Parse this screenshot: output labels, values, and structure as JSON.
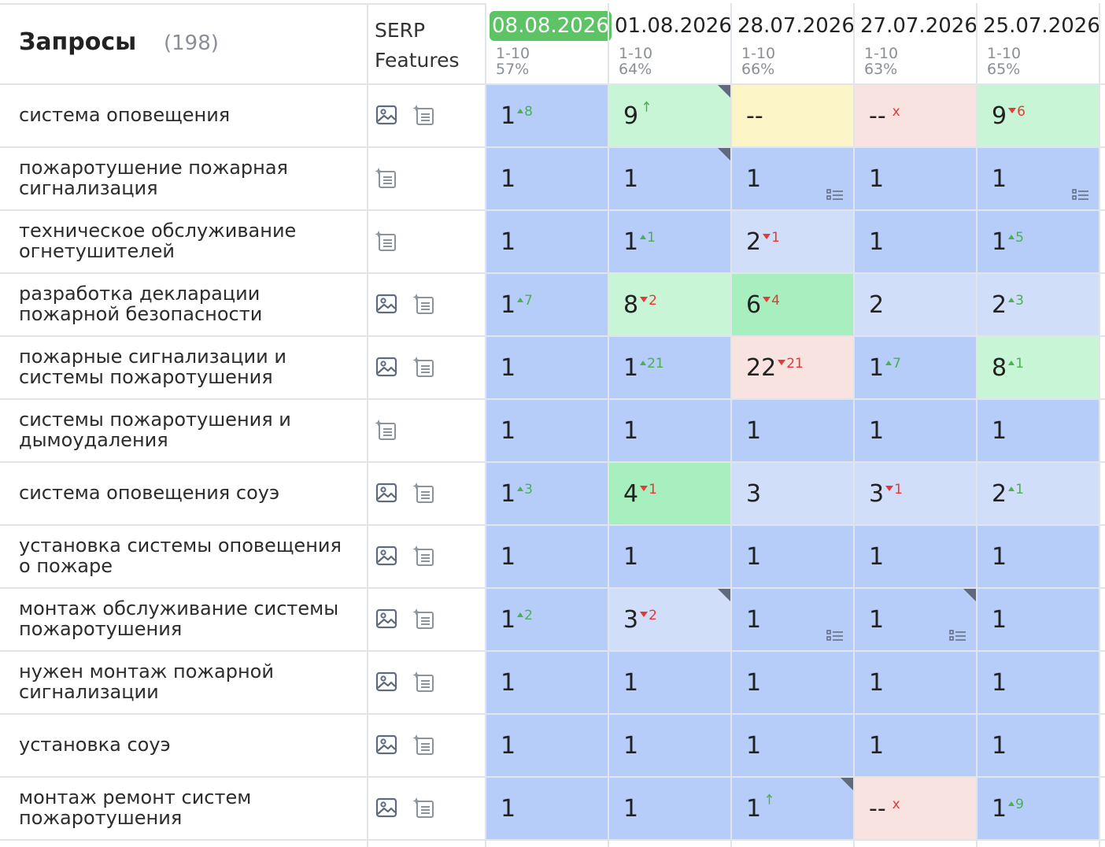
{
  "header": {
    "queries_label": "Запросы",
    "queries_count": "(198)",
    "serp_label_line1": "SERP",
    "serp_label_line2": "Features"
  },
  "dates": [
    {
      "date": "08.08.2026",
      "range": "1-10",
      "percent": "57%",
      "active": true
    },
    {
      "date": "01.08.2026",
      "range": "1-10",
      "percent": "64%",
      "active": false
    },
    {
      "date": "28.07.2026",
      "range": "1-10",
      "percent": "66%",
      "active": false
    },
    {
      "date": "27.07.2026",
      "range": "1-10",
      "percent": "63%",
      "active": false
    },
    {
      "date": "25.07.2026",
      "range": "1-10",
      "percent": "65%",
      "active": false
    }
  ],
  "colors": {
    "top1": "#b6cdf9",
    "top2_3": "#d1def9",
    "top4_7": "#a8efc0",
    "top8_10": "#c8f5d6",
    "absent": "#f9e3e1",
    "dashes": "#fbf5c8"
  },
  "icons": {
    "image": "image-icon",
    "snippet": "sparkle-doc-icon",
    "list": "list-icon"
  },
  "rows": [
    {
      "query": "система оповещения",
      "features": [
        "image",
        "snippet"
      ],
      "cells": [
        {
          "value": "1",
          "change": "8",
          "dir": "up",
          "color": "#b6cdf9"
        },
        {
          "value": "9",
          "change": "",
          "dir": "arrow",
          "color": "#c8f5d6",
          "corner": true
        },
        {
          "value": "--",
          "change": "",
          "dir": "",
          "color": "#fbf5c8"
        },
        {
          "value": "--",
          "change": "x",
          "dir": "x",
          "color": "#f9e3e1"
        },
        {
          "value": "9",
          "change": "6",
          "dir": "down",
          "color": "#c8f5d6"
        }
      ]
    },
    {
      "query": "пожаротушение пожарная сигнализация",
      "features": [
        "snippet"
      ],
      "cells": [
        {
          "value": "1",
          "change": "",
          "dir": "",
          "color": "#b6cdf9"
        },
        {
          "value": "1",
          "change": "",
          "dir": "",
          "color": "#b6cdf9",
          "corner": true
        },
        {
          "value": "1",
          "change": "",
          "dir": "",
          "color": "#b6cdf9",
          "list": true
        },
        {
          "value": "1",
          "change": "",
          "dir": "",
          "color": "#b6cdf9"
        },
        {
          "value": "1",
          "change": "",
          "dir": "",
          "color": "#b6cdf9",
          "list": true
        }
      ]
    },
    {
      "query": "техническое обслуживание огнетушителей",
      "features": [
        "snippet"
      ],
      "cells": [
        {
          "value": "1",
          "change": "",
          "dir": "",
          "color": "#b6cdf9"
        },
        {
          "value": "1",
          "change": "1",
          "dir": "up",
          "color": "#b6cdf9"
        },
        {
          "value": "2",
          "change": "1",
          "dir": "down",
          "color": "#d1def9"
        },
        {
          "value": "1",
          "change": "",
          "dir": "",
          "color": "#b6cdf9"
        },
        {
          "value": "1",
          "change": "5",
          "dir": "up",
          "color": "#b6cdf9"
        }
      ]
    },
    {
      "query": "разработка декларации пожарной безопасности",
      "features": [
        "image",
        "snippet"
      ],
      "cells": [
        {
          "value": "1",
          "change": "7",
          "dir": "up",
          "color": "#b6cdf9"
        },
        {
          "value": "8",
          "change": "2",
          "dir": "down",
          "color": "#c8f5d6"
        },
        {
          "value": "6",
          "change": "4",
          "dir": "down",
          "color": "#a8efc0"
        },
        {
          "value": "2",
          "change": "",
          "dir": "",
          "color": "#d1def9"
        },
        {
          "value": "2",
          "change": "3",
          "dir": "up",
          "color": "#d1def9"
        }
      ]
    },
    {
      "query": "пожарные сигнализации и системы пожаротушения",
      "features": [
        "image",
        "snippet"
      ],
      "cells": [
        {
          "value": "1",
          "change": "",
          "dir": "",
          "color": "#b6cdf9"
        },
        {
          "value": "1",
          "change": "21",
          "dir": "up",
          "color": "#b6cdf9"
        },
        {
          "value": "22",
          "change": "21",
          "dir": "down",
          "color": "#f9e3e1"
        },
        {
          "value": "1",
          "change": "7",
          "dir": "up",
          "color": "#b6cdf9"
        },
        {
          "value": "8",
          "change": "1",
          "dir": "up",
          "color": "#c8f5d6"
        }
      ]
    },
    {
      "query": "системы пожаротушения и дымоудаления",
      "features": [
        "snippet"
      ],
      "cells": [
        {
          "value": "1",
          "change": "",
          "dir": "",
          "color": "#b6cdf9"
        },
        {
          "value": "1",
          "change": "",
          "dir": "",
          "color": "#b6cdf9"
        },
        {
          "value": "1",
          "change": "",
          "dir": "",
          "color": "#b6cdf9"
        },
        {
          "value": "1",
          "change": "",
          "dir": "",
          "color": "#b6cdf9"
        },
        {
          "value": "1",
          "change": "",
          "dir": "",
          "color": "#b6cdf9"
        }
      ]
    },
    {
      "query": "система оповещения соуэ",
      "features": [
        "image",
        "snippet"
      ],
      "cells": [
        {
          "value": "1",
          "change": "3",
          "dir": "up",
          "color": "#b6cdf9"
        },
        {
          "value": "4",
          "change": "1",
          "dir": "down",
          "color": "#a8efc0"
        },
        {
          "value": "3",
          "change": "",
          "dir": "",
          "color": "#d1def9"
        },
        {
          "value": "3",
          "change": "1",
          "dir": "down",
          "color": "#d1def9"
        },
        {
          "value": "2",
          "change": "1",
          "dir": "up",
          "color": "#d1def9"
        }
      ]
    },
    {
      "query": "установка системы оповещения о пожаре",
      "features": [
        "image",
        "snippet"
      ],
      "cells": [
        {
          "value": "1",
          "change": "",
          "dir": "",
          "color": "#b6cdf9"
        },
        {
          "value": "1",
          "change": "",
          "dir": "",
          "color": "#b6cdf9"
        },
        {
          "value": "1",
          "change": "",
          "dir": "",
          "color": "#b6cdf9"
        },
        {
          "value": "1",
          "change": "",
          "dir": "",
          "color": "#b6cdf9"
        },
        {
          "value": "1",
          "change": "",
          "dir": "",
          "color": "#b6cdf9"
        }
      ]
    },
    {
      "query": "монтаж обслуживание системы пожаротушения",
      "features": [
        "image",
        "snippet"
      ],
      "cells": [
        {
          "value": "1",
          "change": "2",
          "dir": "up",
          "color": "#b6cdf9"
        },
        {
          "value": "3",
          "change": "2",
          "dir": "down",
          "color": "#d1def9",
          "corner": true
        },
        {
          "value": "1",
          "change": "",
          "dir": "",
          "color": "#b6cdf9",
          "list": true
        },
        {
          "value": "1",
          "change": "",
          "dir": "",
          "color": "#b6cdf9",
          "corner": true,
          "list": true
        },
        {
          "value": "1",
          "change": "",
          "dir": "",
          "color": "#b6cdf9"
        }
      ]
    },
    {
      "query": "нужен монтаж пожарной сигнализации",
      "features": [
        "image",
        "snippet"
      ],
      "cells": [
        {
          "value": "1",
          "change": "",
          "dir": "",
          "color": "#b6cdf9"
        },
        {
          "value": "1",
          "change": "",
          "dir": "",
          "color": "#b6cdf9"
        },
        {
          "value": "1",
          "change": "",
          "dir": "",
          "color": "#b6cdf9"
        },
        {
          "value": "1",
          "change": "",
          "dir": "",
          "color": "#b6cdf9"
        },
        {
          "value": "1",
          "change": "",
          "dir": "",
          "color": "#b6cdf9"
        }
      ]
    },
    {
      "query": "установка соуэ",
      "features": [
        "image",
        "snippet"
      ],
      "cells": [
        {
          "value": "1",
          "change": "",
          "dir": "",
          "color": "#b6cdf9"
        },
        {
          "value": "1",
          "change": "",
          "dir": "",
          "color": "#b6cdf9"
        },
        {
          "value": "1",
          "change": "",
          "dir": "",
          "color": "#b6cdf9"
        },
        {
          "value": "1",
          "change": "",
          "dir": "",
          "color": "#b6cdf9"
        },
        {
          "value": "1",
          "change": "",
          "dir": "",
          "color": "#b6cdf9"
        }
      ]
    },
    {
      "query": "монтаж ремонт систем пожаротушения",
      "features": [
        "image",
        "snippet"
      ],
      "cells": [
        {
          "value": "1",
          "change": "",
          "dir": "",
          "color": "#b6cdf9"
        },
        {
          "value": "1",
          "change": "",
          "dir": "",
          "color": "#b6cdf9"
        },
        {
          "value": "1",
          "change": "",
          "dir": "arrow",
          "color": "#b6cdf9",
          "corner": true
        },
        {
          "value": "--",
          "change": "x",
          "dir": "x",
          "color": "#f9e3e1"
        },
        {
          "value": "1",
          "change": "9",
          "dir": "up",
          "color": "#b6cdf9"
        }
      ]
    }
  ]
}
